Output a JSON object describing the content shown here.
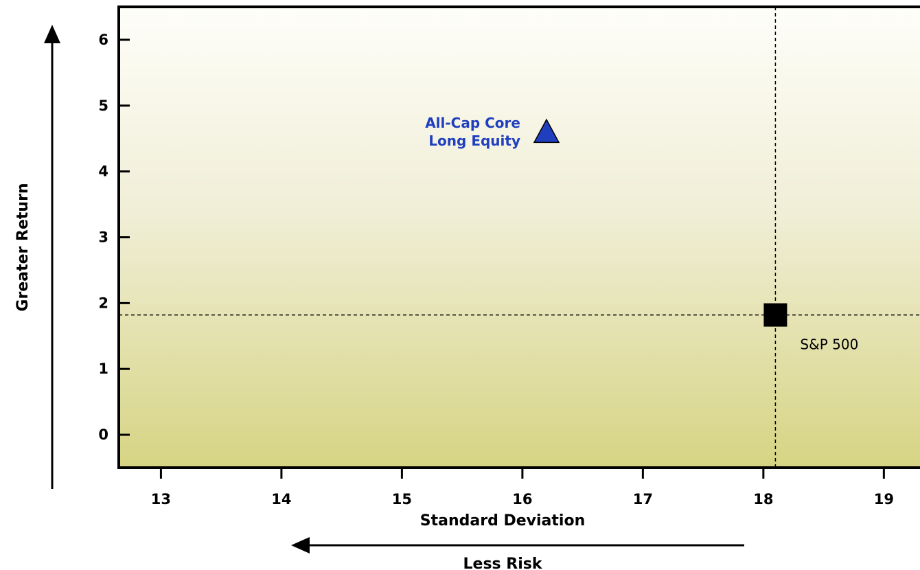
{
  "chart_data": {
    "type": "scatter",
    "title": "",
    "xlabel": "Standard Deviation",
    "ylabel": "Greater Return",
    "x_arrow_label": "Less Risk",
    "xlim": [
      12.65,
      19.3
    ],
    "ylim": [
      -0.5,
      6.5
    ],
    "x_ticks": [
      13,
      14,
      15,
      16,
      17,
      18,
      19
    ],
    "y_ticks": [
      0,
      1,
      2,
      3,
      4,
      5,
      6
    ],
    "grid": false,
    "legend": "none",
    "reference_lines": {
      "x": 18.1,
      "y": 1.82
    },
    "points": [
      {
        "label_lines": [
          "All-Cap Core",
          "Long Equity"
        ],
        "x": 16.2,
        "y": 4.6,
        "marker": "triangle",
        "color": "#1f3fbf",
        "label_color": "#1f3fbf"
      },
      {
        "label_lines": [
          "S&P 500"
        ],
        "x": 18.1,
        "y": 1.82,
        "marker": "square",
        "color": "#000000",
        "label_color": "#000000"
      }
    ],
    "background_gradient": [
      "#fefef9",
      "#d6d483"
    ]
  }
}
